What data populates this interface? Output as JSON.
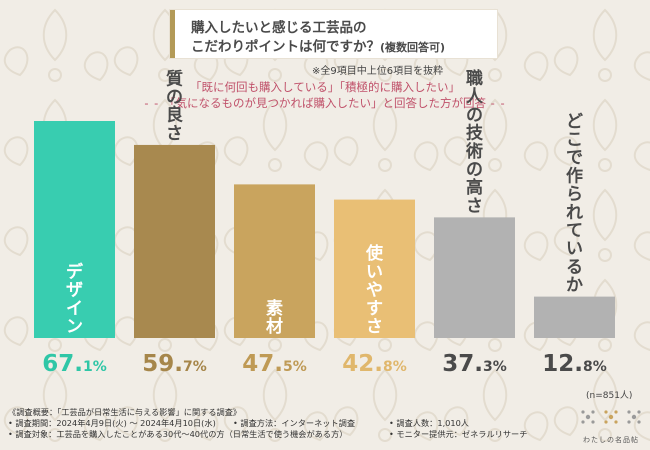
{
  "title": {
    "line1": "購入したいと感じる工芸品の",
    "line2": "こだわりポイントは何ですか？",
    "line2_suffix": "(複数回答可)"
  },
  "note": "※全9項目中上位6項目を抜粋",
  "condition": {
    "line1": "「既に何回も購入している」「積極的に購入したい」",
    "line2": "「気になるものが見つかれば購入したい」と回答した方が回答"
  },
  "sample_size": "(n=851人)",
  "chart_data": {
    "type": "bar",
    "categories": [
      "デザイン",
      "質の良さ",
      "素材",
      "使いやすさ",
      "職人の技術の高さ",
      "どこで作られているか"
    ],
    "values": [
      67.1,
      59.7,
      47.5,
      42.8,
      37.3,
      12.8
    ],
    "value_labels": [
      {
        "int": "67.",
        "dec": "1%"
      },
      {
        "int": "59.",
        "dec": "7%"
      },
      {
        "int": "47.",
        "dec": "5%"
      },
      {
        "int": "42.",
        "dec": "8%"
      },
      {
        "int": "37.",
        "dec": "3%"
      },
      {
        "int": "12.",
        "dec": "8%"
      }
    ],
    "bar_colors": [
      "#38cdb0",
      "#a8894f",
      "#c9a45e",
      "#e9bf75",
      "#b2b2b2",
      "#b2b2b2"
    ],
    "value_colors": [
      "#2fc6a6",
      "#a6864a",
      "#bf9a55",
      "#e0b76c",
      "#4a4a4a",
      "#4a4a4a"
    ],
    "title": "",
    "xlabel": "",
    "ylabel": "",
    "ylim": [
      0,
      70
    ],
    "grid": false,
    "legend": "none"
  },
  "footer": {
    "col1": [
      "《調査概要：「工芸品が日常生活に与える影響」に関する調査》",
      "• 調査期間：2024年4月9日(火) ～ 2024年4月10日(水)",
      "• 調査対象：工芸品を購入したことがある30代～40代の方（日常生活で使う機会がある方）"
    ],
    "col2": [
      "• 調査方法：インターネット調査"
    ],
    "col3": [
      "• 調査人数：1,010人",
      "• モニター提供元：ゼネラルリサーチ"
    ]
  },
  "logo_text": "わたしの名品帖",
  "colors": {
    "title_accent": "#b39a57",
    "condition_text": "#c0516a",
    "background": "#f1ede6"
  }
}
